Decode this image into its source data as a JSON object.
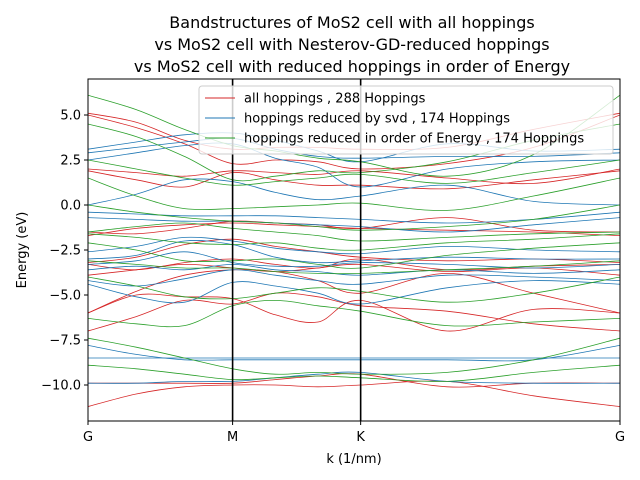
{
  "chart_data": {
    "type": "line",
    "title": [
      "Bandstructures of MoS2 cell with all hoppings",
      "vs MoS2 cell with Nesterov-GD-reduced hoppings",
      "vs MoS2 cell with reduced hoppings in order of Energy"
    ],
    "xlabel": "k (1/nm)",
    "ylabel": "Energy (eV)",
    "xlim": [
      0,
      1
    ],
    "ylim": [
      -12.0,
      7.0
    ],
    "x_ticks": [
      {
        "pos": 0.0,
        "label": "G"
      },
      {
        "pos": 0.2718,
        "label": "M"
      },
      {
        "pos": 0.5125,
        "label": "K"
      },
      {
        "pos": 1.0,
        "label": "G"
      }
    ],
    "y_ticks": [
      5.0,
      2.5,
      0.0,
      -2.5,
      -5.0,
      -7.5,
      -10.0
    ],
    "y_tick_labels": [
      "5.0",
      "2.5",
      "0.0",
      "−2.5",
      "−5.0",
      "−7.5",
      "−10.0"
    ],
    "vlines": [
      0.2718,
      0.5125
    ],
    "legend_position": "top-right",
    "x_nodes": [
      0,
      0.0906,
      0.1812,
      0.2718,
      0.352,
      0.4323,
      0.5125,
      0.675,
      0.8375,
      1.0
    ],
    "series": [
      {
        "name": "all hoppings , 288 Hoppings",
        "color": "#d62728",
        "bands": [
          [
            5.1,
            4.6,
            3.6,
            3.1,
            3.2,
            3.2,
            3.1,
            3.2,
            4.2,
            5.1
          ],
          [
            5.0,
            4.3,
            3.4,
            2.3,
            2.5,
            2.4,
            2.0,
            2.3,
            3.2,
            5.0
          ],
          [
            2.0,
            1.8,
            1.6,
            1.9,
            1.8,
            1.7,
            1.9,
            1.5,
            1.2,
            2.0
          ],
          [
            1.9,
            1.4,
            1.0,
            1.8,
            1.4,
            1.1,
            1.1,
            0.9,
            1.4,
            1.9
          ],
          [
            -1.5,
            -1.6,
            -1.3,
            -0.9,
            -1.0,
            -1.1,
            -1.3,
            -0.7,
            -1.4,
            -1.5
          ],
          [
            -1.7,
            -1.3,
            -1.1,
            -1.0,
            -1.1,
            -1.2,
            -1.3,
            -1.4,
            -1.5,
            -1.7
          ],
          [
            -3.2,
            -2.9,
            -2.2,
            -1.9,
            -2.3,
            -2.6,
            -2.9,
            -3.1,
            -3.0,
            -3.2
          ],
          [
            -3.3,
            -3.6,
            -3.2,
            -3.0,
            -3.3,
            -3.5,
            -3.0,
            -3.6,
            -3.4,
            -3.3
          ],
          [
            -3.9,
            -3.6,
            -3.3,
            -3.5,
            -3.7,
            -3.5,
            -3.3,
            -3.7,
            -3.5,
            -3.9
          ],
          [
            -6.0,
            -4.8,
            -3.9,
            -3.6,
            -3.7,
            -4.2,
            -4.9,
            -3.8,
            -4.9,
            -6.0
          ],
          [
            -6.0,
            -5.0,
            -5.1,
            -5.2,
            -6.1,
            -6.5,
            -5.3,
            -7.0,
            -5.8,
            -6.0
          ],
          [
            -7.0,
            -6.2,
            -5.3,
            -5.5,
            -4.9,
            -5.1,
            -5.6,
            -5.9,
            -6.6,
            -7.0
          ],
          [
            -9.9,
            -9.9,
            -9.9,
            -9.9,
            -9.7,
            -9.5,
            -9.4,
            -10.1,
            -9.9,
            -9.9
          ],
          [
            -11.2,
            -10.5,
            -10.1,
            -10.0,
            -10.0,
            -10.1,
            -10.0,
            -9.8,
            -10.6,
            -11.2
          ]
        ]
      },
      {
        "name": "hoppings reduced by svd , 174 Hoppings",
        "color": "#1f77b4",
        "bands": [
          [
            3.1,
            3.5,
            3.9,
            4.0,
            3.6,
            3.0,
            2.4,
            3.4,
            3.0,
            3.1
          ],
          [
            2.9,
            3.2,
            3.5,
            3.7,
            3.1,
            2.7,
            2.6,
            2.7,
            2.7,
            2.9
          ],
          [
            2.5,
            2.9,
            3.3,
            3.4,
            2.6,
            2.1,
            1.0,
            2.0,
            2.4,
            2.5
          ],
          [
            0.0,
            0.6,
            1.4,
            1.3,
            0.7,
            0.3,
            0.5,
            1.1,
            0.2,
            0.0
          ],
          [
            -0.4,
            -0.5,
            -0.6,
            -0.6,
            -0.6,
            -0.7,
            -0.8,
            -1.0,
            -0.8,
            -0.4
          ],
          [
            -0.7,
            -0.8,
            -0.9,
            -0.9,
            -1.0,
            -1.1,
            -1.2,
            -1.5,
            -1.1,
            -0.7
          ],
          [
            -2.6,
            -2.3,
            -1.8,
            -2.0,
            -2.4,
            -2.6,
            -2.7,
            -2.3,
            -2.5,
            -2.6
          ],
          [
            -3.0,
            -2.8,
            -2.0,
            -2.2,
            -2.9,
            -3.2,
            -3.1,
            -2.9,
            -3.0,
            -3.0
          ],
          [
            -3.3,
            -3.1,
            -2.6,
            -3.2,
            -3.4,
            -3.4,
            -3.2,
            -3.3,
            -3.5,
            -3.3
          ],
          [
            -3.6,
            -3.4,
            -3.6,
            -3.3,
            -3.6,
            -3.7,
            -3.9,
            -3.6,
            -3.8,
            -3.6
          ],
          [
            -4.2,
            -4.5,
            -4.1,
            -3.6,
            -3.9,
            -4.2,
            -4.4,
            -3.9,
            -4.0,
            -4.2
          ],
          [
            -4.4,
            -5.1,
            -5.4,
            -4.3,
            -4.5,
            -4.9,
            -5.5,
            -4.6,
            -4.2,
            -4.4
          ],
          [
            -7.8,
            -8.3,
            -8.6,
            -8.6,
            -8.6,
            -8.6,
            -8.6,
            -8.6,
            -8.6,
            -7.8
          ],
          [
            -8.5,
            -8.5,
            -8.5,
            -8.5,
            -8.5,
            -8.5,
            -8.5,
            -8.5,
            -8.5,
            -8.5
          ],
          [
            -9.9,
            -9.9,
            -9.8,
            -9.8,
            -9.6,
            -9.4,
            -9.3,
            -9.8,
            -9.9,
            -9.9
          ]
        ]
      },
      {
        "name": "hoppings reduced in order of Energy , 174 Hoppings",
        "color": "#2ca02c",
        "bands": [
          [
            6.1,
            5.3,
            4.2,
            3.3,
            3.0,
            2.6,
            2.4,
            1.6,
            2.8,
            6.1
          ],
          [
            4.5,
            3.8,
            2.7,
            1.4,
            1.6,
            1.9,
            1.8,
            2.4,
            3.6,
            4.5
          ],
          [
            2.5,
            2.0,
            1.5,
            1.1,
            1.3,
            1.5,
            1.7,
            1.2,
            1.8,
            2.5
          ],
          [
            1.5,
            0.5,
            -0.2,
            -0.2,
            -0.1,
            0.0,
            0.1,
            -0.3,
            0.5,
            1.5
          ],
          [
            0.0,
            -0.4,
            -0.7,
            -0.9,
            -1.0,
            -1.2,
            -1.4,
            -1.2,
            -0.8,
            0.0
          ],
          [
            -1.5,
            -1.2,
            -1.0,
            -1.3,
            -1.5,
            -1.7,
            -2.0,
            -1.8,
            -1.6,
            -1.5
          ],
          [
            -1.6,
            -1.8,
            -2.1,
            -2.2,
            -2.1,
            -2.4,
            -2.5,
            -2.1,
            -1.9,
            -1.6
          ],
          [
            -2.1,
            -2.5,
            -3.1,
            -3.1,
            -3.0,
            -3.3,
            -3.5,
            -2.8,
            -2.4,
            -2.1
          ],
          [
            -3.1,
            -3.3,
            -3.5,
            -3.5,
            -3.7,
            -3.8,
            -3.8,
            -3.6,
            -3.4,
            -3.1
          ],
          [
            -4.0,
            -4.5,
            -5.1,
            -5.2,
            -4.9,
            -4.6,
            -4.8,
            -5.4,
            -4.9,
            -4.0
          ],
          [
            -6.3,
            -6.6,
            -6.7,
            -5.6,
            -5.3,
            -5.6,
            -5.9,
            -6.7,
            -6.5,
            -6.3
          ],
          [
            -7.4,
            -7.9,
            -8.5,
            -9.1,
            -9.4,
            -9.3,
            -9.4,
            -9.3,
            -8.6,
            -7.4
          ],
          [
            -8.9,
            -9.1,
            -9.4,
            -9.7,
            -9.6,
            -9.5,
            -9.6,
            -9.8,
            -9.3,
            -8.9
          ]
        ]
      }
    ]
  }
}
